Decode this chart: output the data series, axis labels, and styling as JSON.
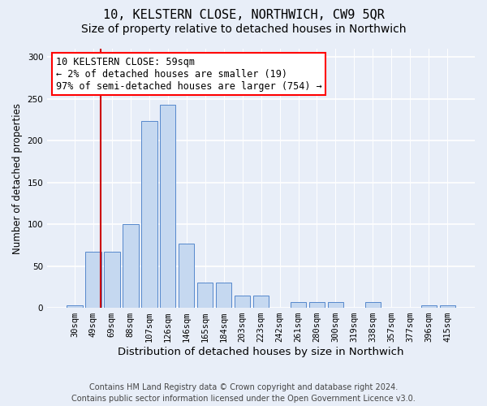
{
  "title": "10, KELSTERN CLOSE, NORTHWICH, CW9 5QR",
  "subtitle": "Size of property relative to detached houses in Northwich",
  "xlabel": "Distribution of detached houses by size in Northwich",
  "ylabel": "Number of detached properties",
  "categories": [
    "30sqm",
    "49sqm",
    "69sqm",
    "88sqm",
    "107sqm",
    "126sqm",
    "146sqm",
    "165sqm",
    "184sqm",
    "203sqm",
    "223sqm",
    "242sqm",
    "261sqm",
    "280sqm",
    "300sqm",
    "319sqm",
    "338sqm",
    "357sqm",
    "377sqm",
    "396sqm",
    "415sqm"
  ],
  "values": [
    3,
    67,
    67,
    100,
    224,
    243,
    77,
    30,
    30,
    15,
    15,
    0,
    7,
    7,
    7,
    0,
    7,
    0,
    0,
    3,
    3
  ],
  "bar_color": "#c5d8f0",
  "bar_edge_color": "#5588cc",
  "vline_color": "#cc0000",
  "vline_x": 1.42,
  "annotation_text": "10 KELSTERN CLOSE: 59sqm\n← 2% of detached houses are smaller (19)\n97% of semi-detached houses are larger (754) →",
  "ylim": [
    0,
    310
  ],
  "yticks": [
    0,
    50,
    100,
    150,
    200,
    250,
    300
  ],
  "footer": "Contains HM Land Registry data © Crown copyright and database right 2024.\nContains public sector information licensed under the Open Government Licence v3.0.",
  "bg_color": "#e8eef8",
  "grid_color": "white",
  "title_fontsize": 11,
  "subtitle_fontsize": 10,
  "xlabel_fontsize": 9.5,
  "ylabel_fontsize": 8.5,
  "footer_fontsize": 7,
  "tick_fontsize": 7.5,
  "annot_fontsize": 8.5
}
